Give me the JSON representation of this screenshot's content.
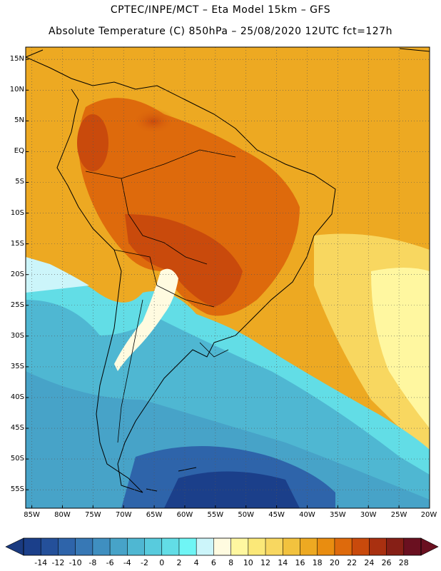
{
  "header": {
    "line1": "CPTEC/INPE/MCT –  Eta Model 15km – GFS",
    "line2": "Absolute Temperature (C) 850hPa – 25/08/2020 12UTC fct=127h"
  },
  "map": {
    "region": "South America",
    "lat_range": [
      -58,
      17
    ],
    "lon_range": [
      -86,
      -20
    ],
    "lat_labels": [
      "15N",
      "10N",
      "5N",
      "EQ",
      "5S",
      "10S",
      "15S",
      "20S",
      "25S",
      "30S",
      "35S",
      "40S",
      "45S",
      "50S",
      "55S"
    ],
    "lon_labels": [
      "85W",
      "80W",
      "75W",
      "70W",
      "65W",
      "60W",
      "55W",
      "50W",
      "45W",
      "40W",
      "35W",
      "30W",
      "25W",
      "20W"
    ],
    "grid": "dotted"
  },
  "colorbar": {
    "labels": [
      "-14",
      "-12",
      "-10",
      "-8",
      "-6",
      "-4",
      "-2",
      "0",
      "2",
      "4",
      "6",
      "8",
      "10",
      "12",
      "14",
      "16",
      "18",
      "20",
      "22",
      "24",
      "26",
      "28"
    ],
    "colors": [
      "#1b3f8a",
      "#24509a",
      "#2e64aa",
      "#3778b5",
      "#3f8fc0",
      "#47a3c8",
      "#4fb7d2",
      "#58cbdd",
      "#62dde6",
      "#6ff5f5",
      "#ccf5fa",
      "#fffbe0",
      "#fff7a0",
      "#fbe878",
      "#f8d760",
      "#f2c23e",
      "#eda922",
      "#e98d10",
      "#de6a0c",
      "#c94a0c",
      "#a93010",
      "#861f16",
      "#6a1020"
    ],
    "low_color": "#1a3a80",
    "high_color": "#6a1020"
  }
}
